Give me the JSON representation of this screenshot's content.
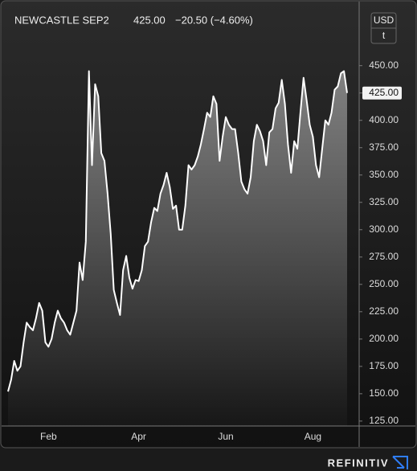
{
  "chart_data": {
    "type": "area",
    "symbol": "NEWCASTLE SEP2",
    "last_price": {
      "value": 425,
      "label": "425.00"
    },
    "change": "−20.50 (−4.60%)",
    "currency": "USD",
    "unit": "t",
    "brand": "REFINITIV",
    "color": "#ffffff",
    "categories": [
      null,
      null,
      null,
      null,
      null,
      null,
      null,
      null,
      null,
      null,
      null,
      null,
      null,
      "Feb",
      null,
      null,
      null,
      null,
      null,
      null,
      null,
      null,
      null,
      null,
      null,
      null,
      null,
      null,
      null,
      null,
      null,
      null,
      null,
      null,
      null,
      null,
      null,
      null,
      null,
      null,
      null,
      null,
      "Apr",
      null,
      null,
      null,
      null,
      null,
      null,
      null,
      null,
      null,
      null,
      null,
      null,
      null,
      null,
      null,
      null,
      null,
      null,
      null,
      null,
      null,
      null,
      null,
      null,
      null,
      null,
      null,
      "Jun",
      null,
      null,
      null,
      null,
      null,
      null,
      null,
      null,
      null,
      null,
      null,
      null,
      null,
      null,
      null,
      null,
      null,
      null,
      null,
      null,
      null,
      null,
      null,
      null,
      null,
      null,
      null,
      "Aug",
      null,
      null,
      null,
      null,
      null,
      null,
      null,
      null,
      null,
      null,
      null
    ],
    "values": [
      152,
      163,
      180,
      171,
      175,
      197,
      215,
      211,
      208,
      219,
      233,
      226,
      197,
      193,
      200,
      215,
      226,
      219,
      215,
      208,
      204,
      215,
      226,
      270,
      254,
      289,
      445,
      359,
      433,
      422,
      370,
      363,
      333,
      296,
      245,
      233,
      222,
      263,
      276,
      256,
      246,
      254,
      253,
      263,
      285,
      289,
      307,
      320,
      317,
      333,
      341,
      352,
      339,
      319,
      322,
      300,
      300,
      322,
      359,
      355,
      359,
      367,
      378,
      392,
      407,
      403,
      422,
      415,
      363,
      385,
      403,
      396,
      392,
      392,
      370,
      344,
      337,
      333,
      348,
      381,
      396,
      390,
      381,
      359,
      389,
      392,
      411,
      416,
      437,
      415,
      378,
      352,
      381,
      374,
      407,
      439,
      418,
      396,
      385,
      359,
      348,
      374,
      400,
      396,
      407,
      428,
      431,
      443,
      445,
      425
    ],
    "ylim": [
      120.5,
      463
    ],
    "yticks": [
      {
        "value": 125,
        "label": "125.00"
      },
      {
        "value": 150,
        "label": "150.00"
      },
      {
        "value": 175,
        "label": "175.00"
      },
      {
        "value": 200,
        "label": "200.00"
      },
      {
        "value": 225,
        "label": "225.00"
      },
      {
        "value": 250,
        "label": "250.00"
      },
      {
        "value": 275,
        "label": "275.00"
      },
      {
        "value": 300,
        "label": "300.00"
      },
      {
        "value": 325,
        "label": "325.00"
      },
      {
        "value": 350,
        "label": "350.00"
      },
      {
        "value": 375,
        "label": "375.00"
      },
      {
        "value": 400,
        "label": "400.00"
      },
      {
        "value": 425,
        "label": "425.00"
      },
      {
        "value": 450,
        "label": "450.00"
      }
    ]
  }
}
